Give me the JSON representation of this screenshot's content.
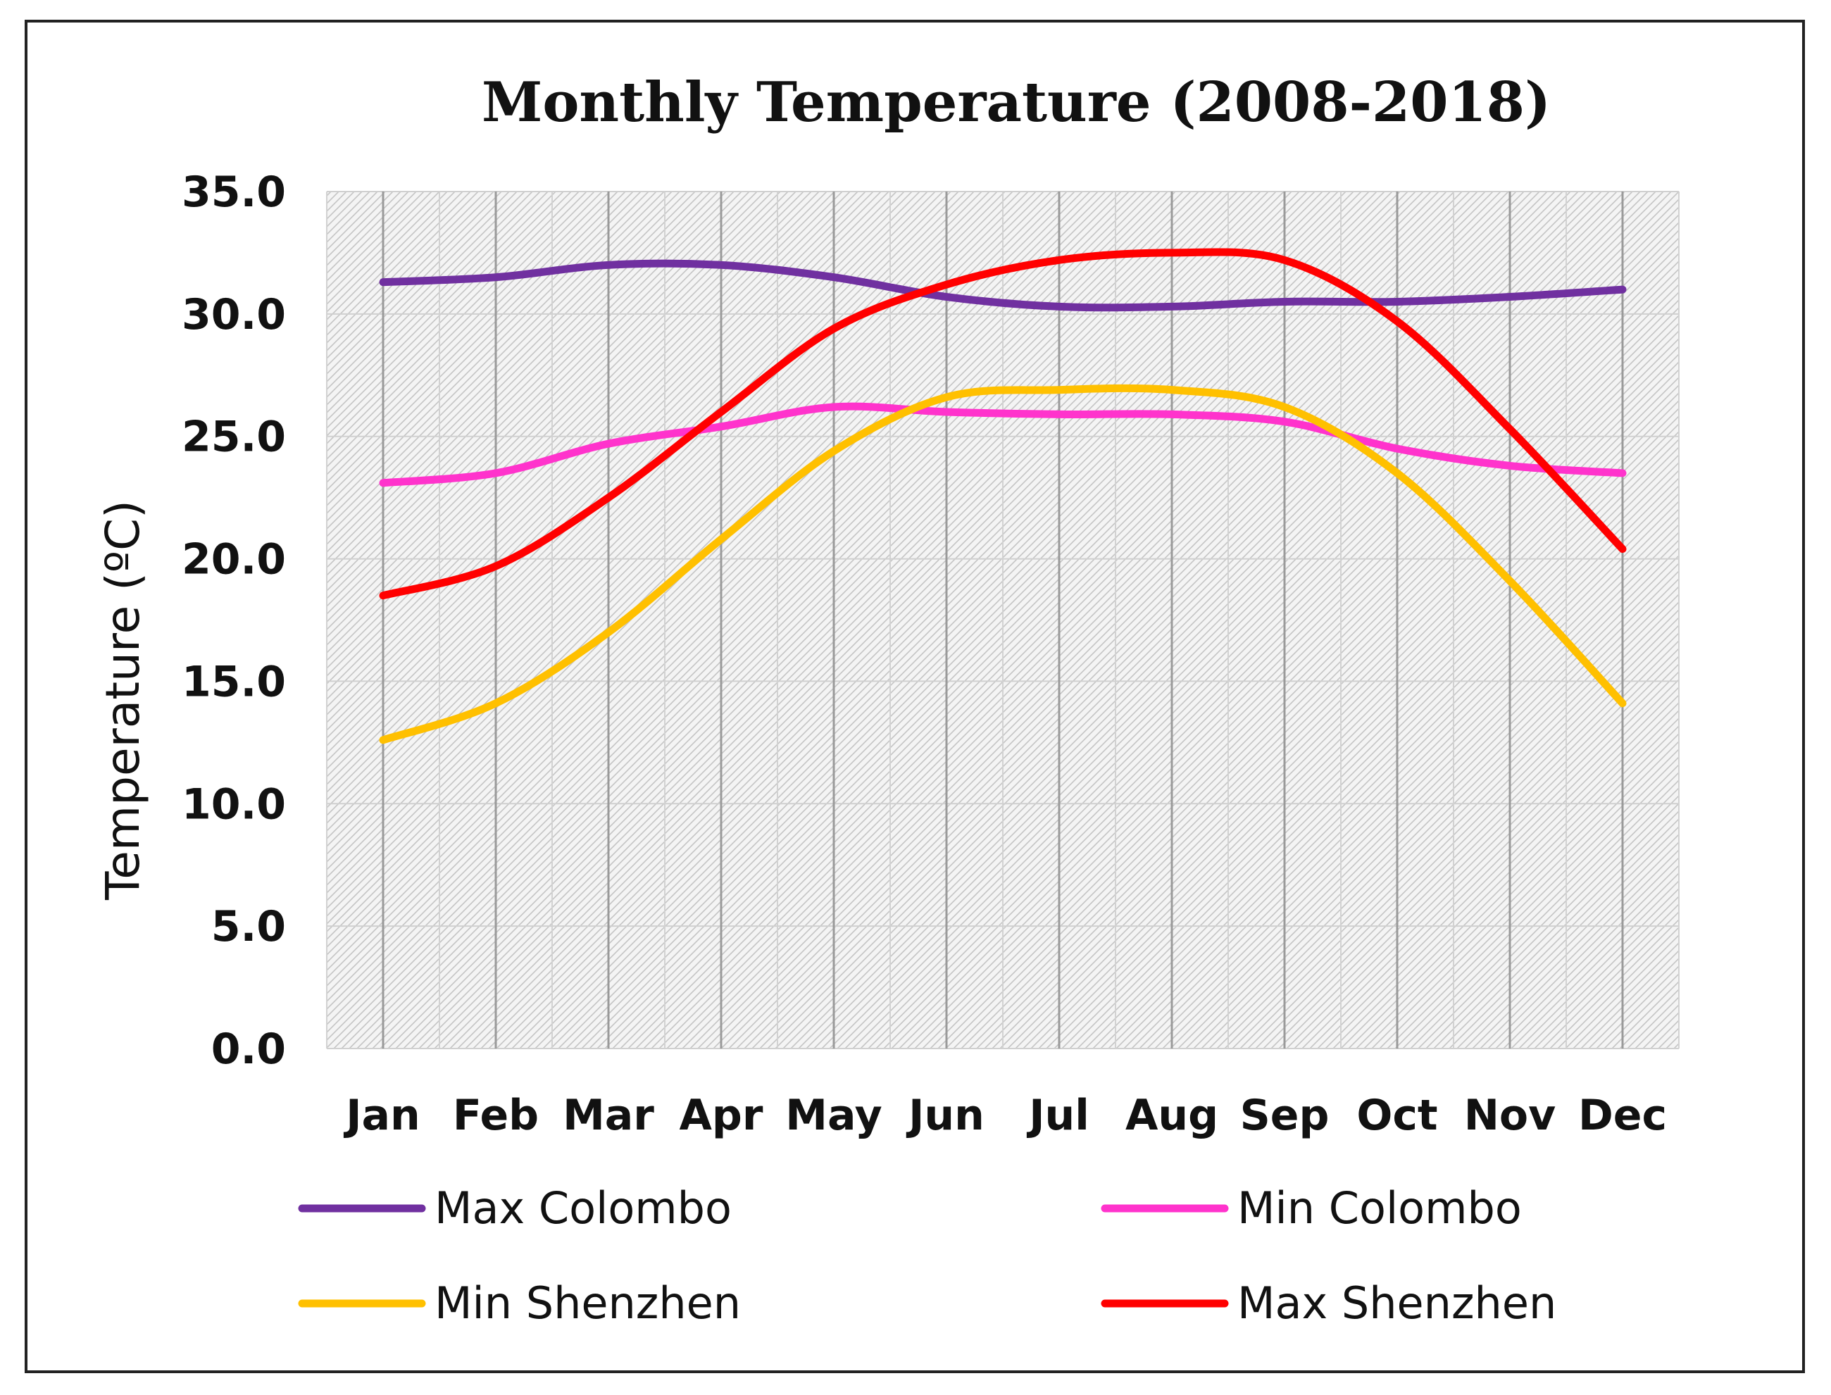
{
  "chart_data": {
    "type": "line",
    "title": "Monthly Temperature (2008-2018)",
    "xlabel": "",
    "ylabel": "Temperature  (ºC)",
    "categories": [
      "Jan",
      "Feb",
      "Mar",
      "Apr",
      "May",
      "Jun",
      "Jul",
      "Aug",
      "Sep",
      "Oct",
      "Nov",
      "Dec"
    ],
    "ylim": [
      0,
      35
    ],
    "yticks": [
      "0.0",
      "5.0",
      "10.0",
      "15.0",
      "20.0",
      "25.0",
      "30.0",
      "35.0"
    ],
    "grid": true,
    "legend_position": "bottom",
    "series": [
      {
        "name": "Max Colombo",
        "color": "#7030a0",
        "values": [
          31.3,
          31.5,
          32.0,
          32.0,
          31.5,
          30.7,
          30.3,
          30.3,
          30.5,
          30.5,
          30.7,
          31.0
        ]
      },
      {
        "name": "Min Colombo",
        "color": "#ff33cc",
        "values": [
          23.1,
          23.5,
          24.7,
          25.4,
          26.2,
          26.0,
          25.9,
          25.9,
          25.6,
          24.5,
          23.8,
          23.5
        ]
      },
      {
        "name": "Min Shenzhen",
        "color": "#ffc000",
        "values": [
          12.6,
          14.1,
          17.0,
          20.8,
          24.4,
          26.6,
          26.9,
          26.9,
          26.2,
          23.5,
          19.1,
          14.1
        ]
      },
      {
        "name": "Max Shenzhen",
        "color": "#ff0000",
        "values": [
          18.5,
          19.7,
          22.5,
          26.0,
          29.4,
          31.2,
          32.2,
          32.5,
          32.2,
          29.7,
          25.3,
          20.4
        ]
      }
    ],
    "legend_order": [
      "Max Colombo",
      "Min Colombo",
      "Min Shenzhen",
      "Max Shenzhen"
    ]
  }
}
